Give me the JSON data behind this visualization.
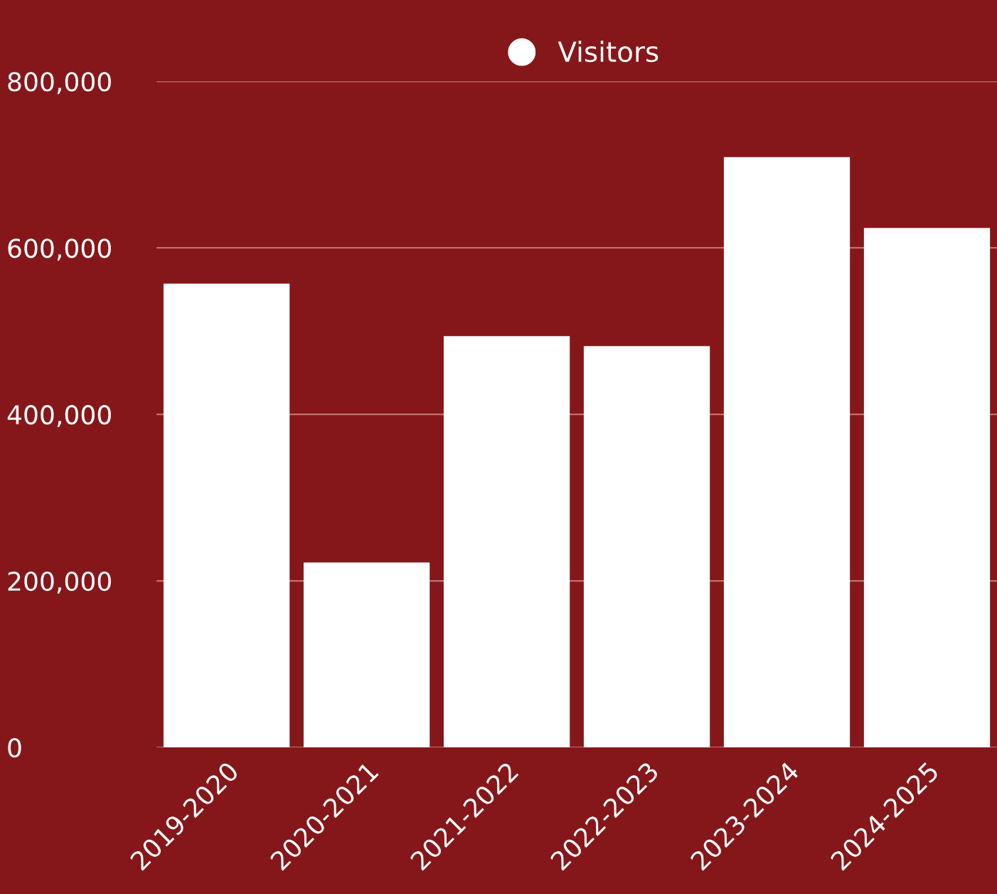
{
  "chart_data": {
    "type": "bar",
    "categories": [
      "2019-2020",
      "2020-2021",
      "2021-2022",
      "2022-2023",
      "2023-2024",
      "2024-2025"
    ],
    "series": [
      {
        "name": "Visitors",
        "color": "#ffffff",
        "values": [
          557000,
          222000,
          494000,
          482000,
          709000,
          624000
        ]
      }
    ],
    "ylim": [
      0,
      800000
    ],
    "yticks": [
      {
        "value": 0,
        "label": "0"
      },
      {
        "value": 200000,
        "label": "200,000"
      },
      {
        "value": 400000,
        "label": "400,000"
      },
      {
        "value": 600000,
        "label": "600,000"
      },
      {
        "value": 800000,
        "label": "800,000"
      }
    ],
    "grid": "y",
    "legend": "top"
  }
}
